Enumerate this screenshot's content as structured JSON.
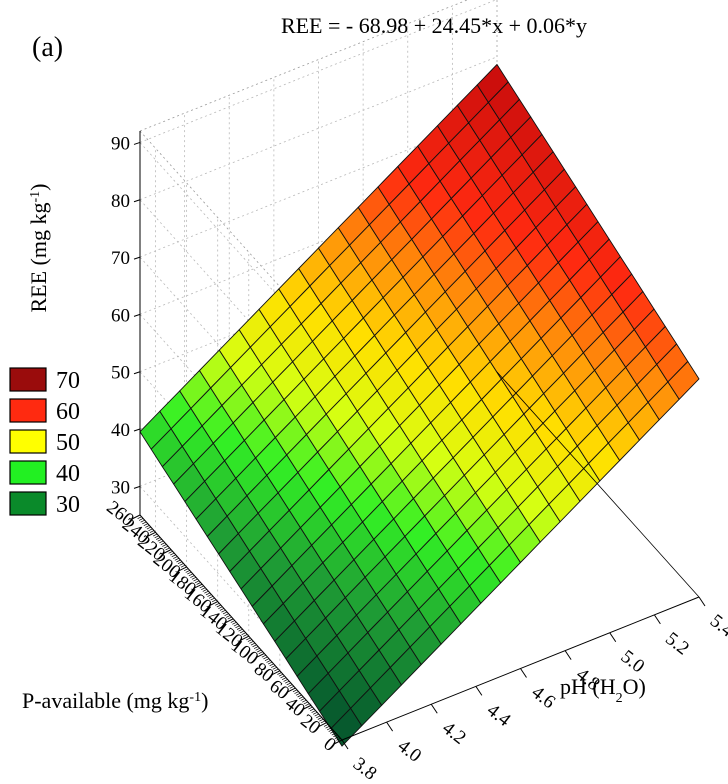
{
  "panel_label": "(a)",
  "equation": "REE = - 68.98 + 24.45*x + 0.06*y",
  "chart_data": {
    "type": "surface3d",
    "x_axis": {
      "label": "pH (H",
      "label_sub": "2",
      "label_end": "O)",
      "range": [
        3.8,
        5.4
      ],
      "ticks": [
        "3.8",
        "4.0",
        "4.2",
        "4.4",
        "4.6",
        "4.8",
        "5.0",
        "5.2",
        "5.4"
      ]
    },
    "y_axis": {
      "label": "P-available (mg kg",
      "label_sup": "-1",
      "label_end": ")",
      "range": [
        0,
        260
      ],
      "ticks": [
        "0",
        "20",
        "40",
        "60",
        "80",
        "100",
        "120",
        "140",
        "160",
        "180",
        "200",
        "220",
        "240",
        "260"
      ]
    },
    "z_axis": {
      "label": "REE (mg kg",
      "label_sup": "-1",
      "label_end": ")",
      "range": [
        25,
        92
      ],
      "ticks": [
        "30",
        "40",
        "50",
        "60",
        "70",
        "80",
        "90"
      ]
    },
    "model": {
      "intercept": -68.98,
      "coef_x": 24.45,
      "coef_y": 0.06
    },
    "grid": {
      "nx": 18,
      "ny": 18
    },
    "legend": {
      "position": "left",
      "items": [
        {
          "label": "70",
          "color": "#9a0c0c"
        },
        {
          "label": "60",
          "color": "#ff2a10"
        },
        {
          "label": "50",
          "color": "#ffff00"
        },
        {
          "label": "40",
          "color": "#22f022"
        },
        {
          "label": "30",
          "color": "#0a8a2a"
        }
      ]
    },
    "colormap": [
      {
        "v": 26,
        "color": "#075a2e"
      },
      {
        "v": 35,
        "color": "#1f9e35"
      },
      {
        "v": 42,
        "color": "#33f025"
      },
      {
        "v": 48,
        "color": "#d6ff12"
      },
      {
        "v": 54,
        "color": "#ffe000"
      },
      {
        "v": 61,
        "color": "#ff8c0a"
      },
      {
        "v": 67,
        "color": "#ff2a10"
      },
      {
        "v": 78,
        "color": "#c80c0c"
      },
      {
        "v": 90,
        "color": "#7a0a0a"
      }
    ]
  }
}
